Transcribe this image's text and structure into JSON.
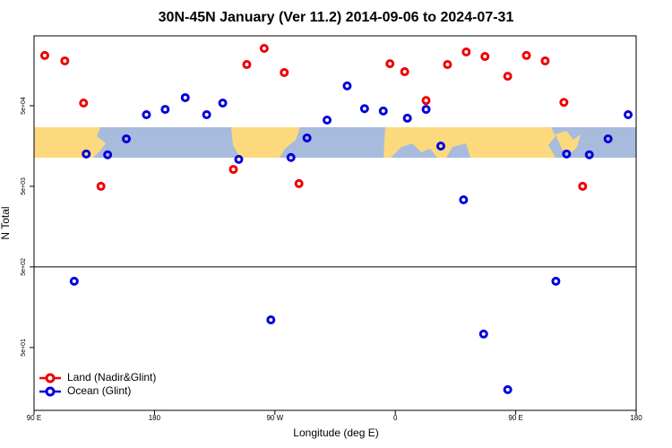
{
  "chart_data": {
    "type": "scatter",
    "title": "30N-45N January (Ver 11.2)   2014-09-06 to 2024-07-31",
    "x_label": "Longitude (deg E)",
    "y_label": "N Total",
    "log_y": true,
    "grid": false,
    "legend_position": "bottom-left",
    "xlim": [
      90,
      540
    ],
    "ylim": [
      8.3,
      368000
    ],
    "xticks": [
      {
        "value": 90,
        "label": "90 E"
      },
      180,
      {
        "value": 270,
        "label": "90 W"
      },
      {
        "value": 360,
        "label": "0"
      },
      {
        "value": 450,
        "label": "90 E"
      },
      {
        "value": 540,
        "label": "180"
      }
    ],
    "yticks": [
      {
        "value": 50,
        "label": "5e+01"
      },
      {
        "value": 500,
        "label": "5e+02"
      },
      {
        "value": 5000,
        "label": "5e+03"
      },
      {
        "value": 50000,
        "label": "5e+04"
      }
    ],
    "hline": 500,
    "series": [
      {
        "name": "Land (Nadir&Glint)",
        "color": "#ee0000",
        "x": [
          98,
          113,
          127,
          140,
          239,
          249,
          262,
          277,
          288,
          356,
          367,
          383,
          399,
          413,
          427,
          444,
          458,
          472,
          486,
          500
        ],
        "values": [
          210000,
          180000,
          54000,
          5000,
          8100,
          162000,
          257000,
          129000,
          5400,
          166000,
          132000,
          58000,
          162000,
          232000,
          204000,
          116000,
          210000,
          180000,
          55000,
          5000
        ]
      },
      {
        "name": "Ocean (Glint)",
        "color": "#0000dd",
        "x": [
          120,
          129,
          145,
          159,
          174,
          188,
          203,
          219,
          231,
          243,
          267,
          282,
          294,
          309,
          324,
          337,
          351,
          369,
          383,
          394,
          411,
          426,
          444,
          480,
          488,
          505,
          519,
          534
        ],
        "values": [
          332,
          12600,
          12300,
          19400,
          38700,
          45000,
          63000,
          38700,
          54000,
          10800,
          110,
          11400,
          19900,
          33200,
          88000,
          46000,
          43000,
          35000,
          45000,
          15800,
          3400,
          73.5,
          15,
          332,
          12600,
          12300,
          19400,
          38700
        ]
      }
    ]
  }
}
